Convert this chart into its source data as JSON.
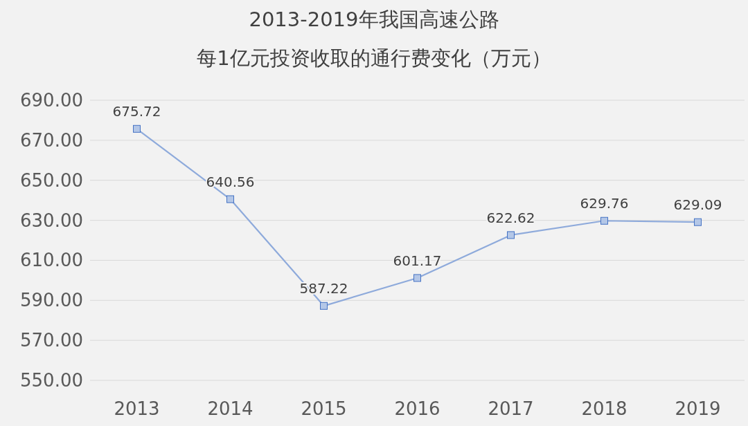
{
  "chart_data": {
    "type": "line",
    "title": "2013-2019年我国高速公路",
    "subtitle": "每1亿元投资收取的通行费变化（万元）",
    "categories": [
      "2013",
      "2014",
      "2015",
      "2016",
      "2017",
      "2018",
      "2019"
    ],
    "series": [
      {
        "color": "#8eaadb",
        "values": [
          675.72,
          640.56,
          587.22,
          601.17,
          622.62,
          629.76,
          629.09
        ]
      }
    ],
    "ylim": [
      550,
      690
    ],
    "yticks": [
      {
        "value": 550,
        "label": "550.00"
      },
      {
        "value": 570,
        "label": "570.00"
      },
      {
        "value": 590,
        "label": "590.00"
      },
      {
        "value": 610,
        "label": "610.00"
      },
      {
        "value": 630,
        "label": "630.00"
      },
      {
        "value": 650,
        "label": "650.00"
      },
      {
        "value": 670,
        "label": "670.00"
      },
      {
        "value": 690,
        "label": "690.00"
      }
    ],
    "grid": "y",
    "marker": "square",
    "line_style": "solid",
    "data_labels": true
  }
}
